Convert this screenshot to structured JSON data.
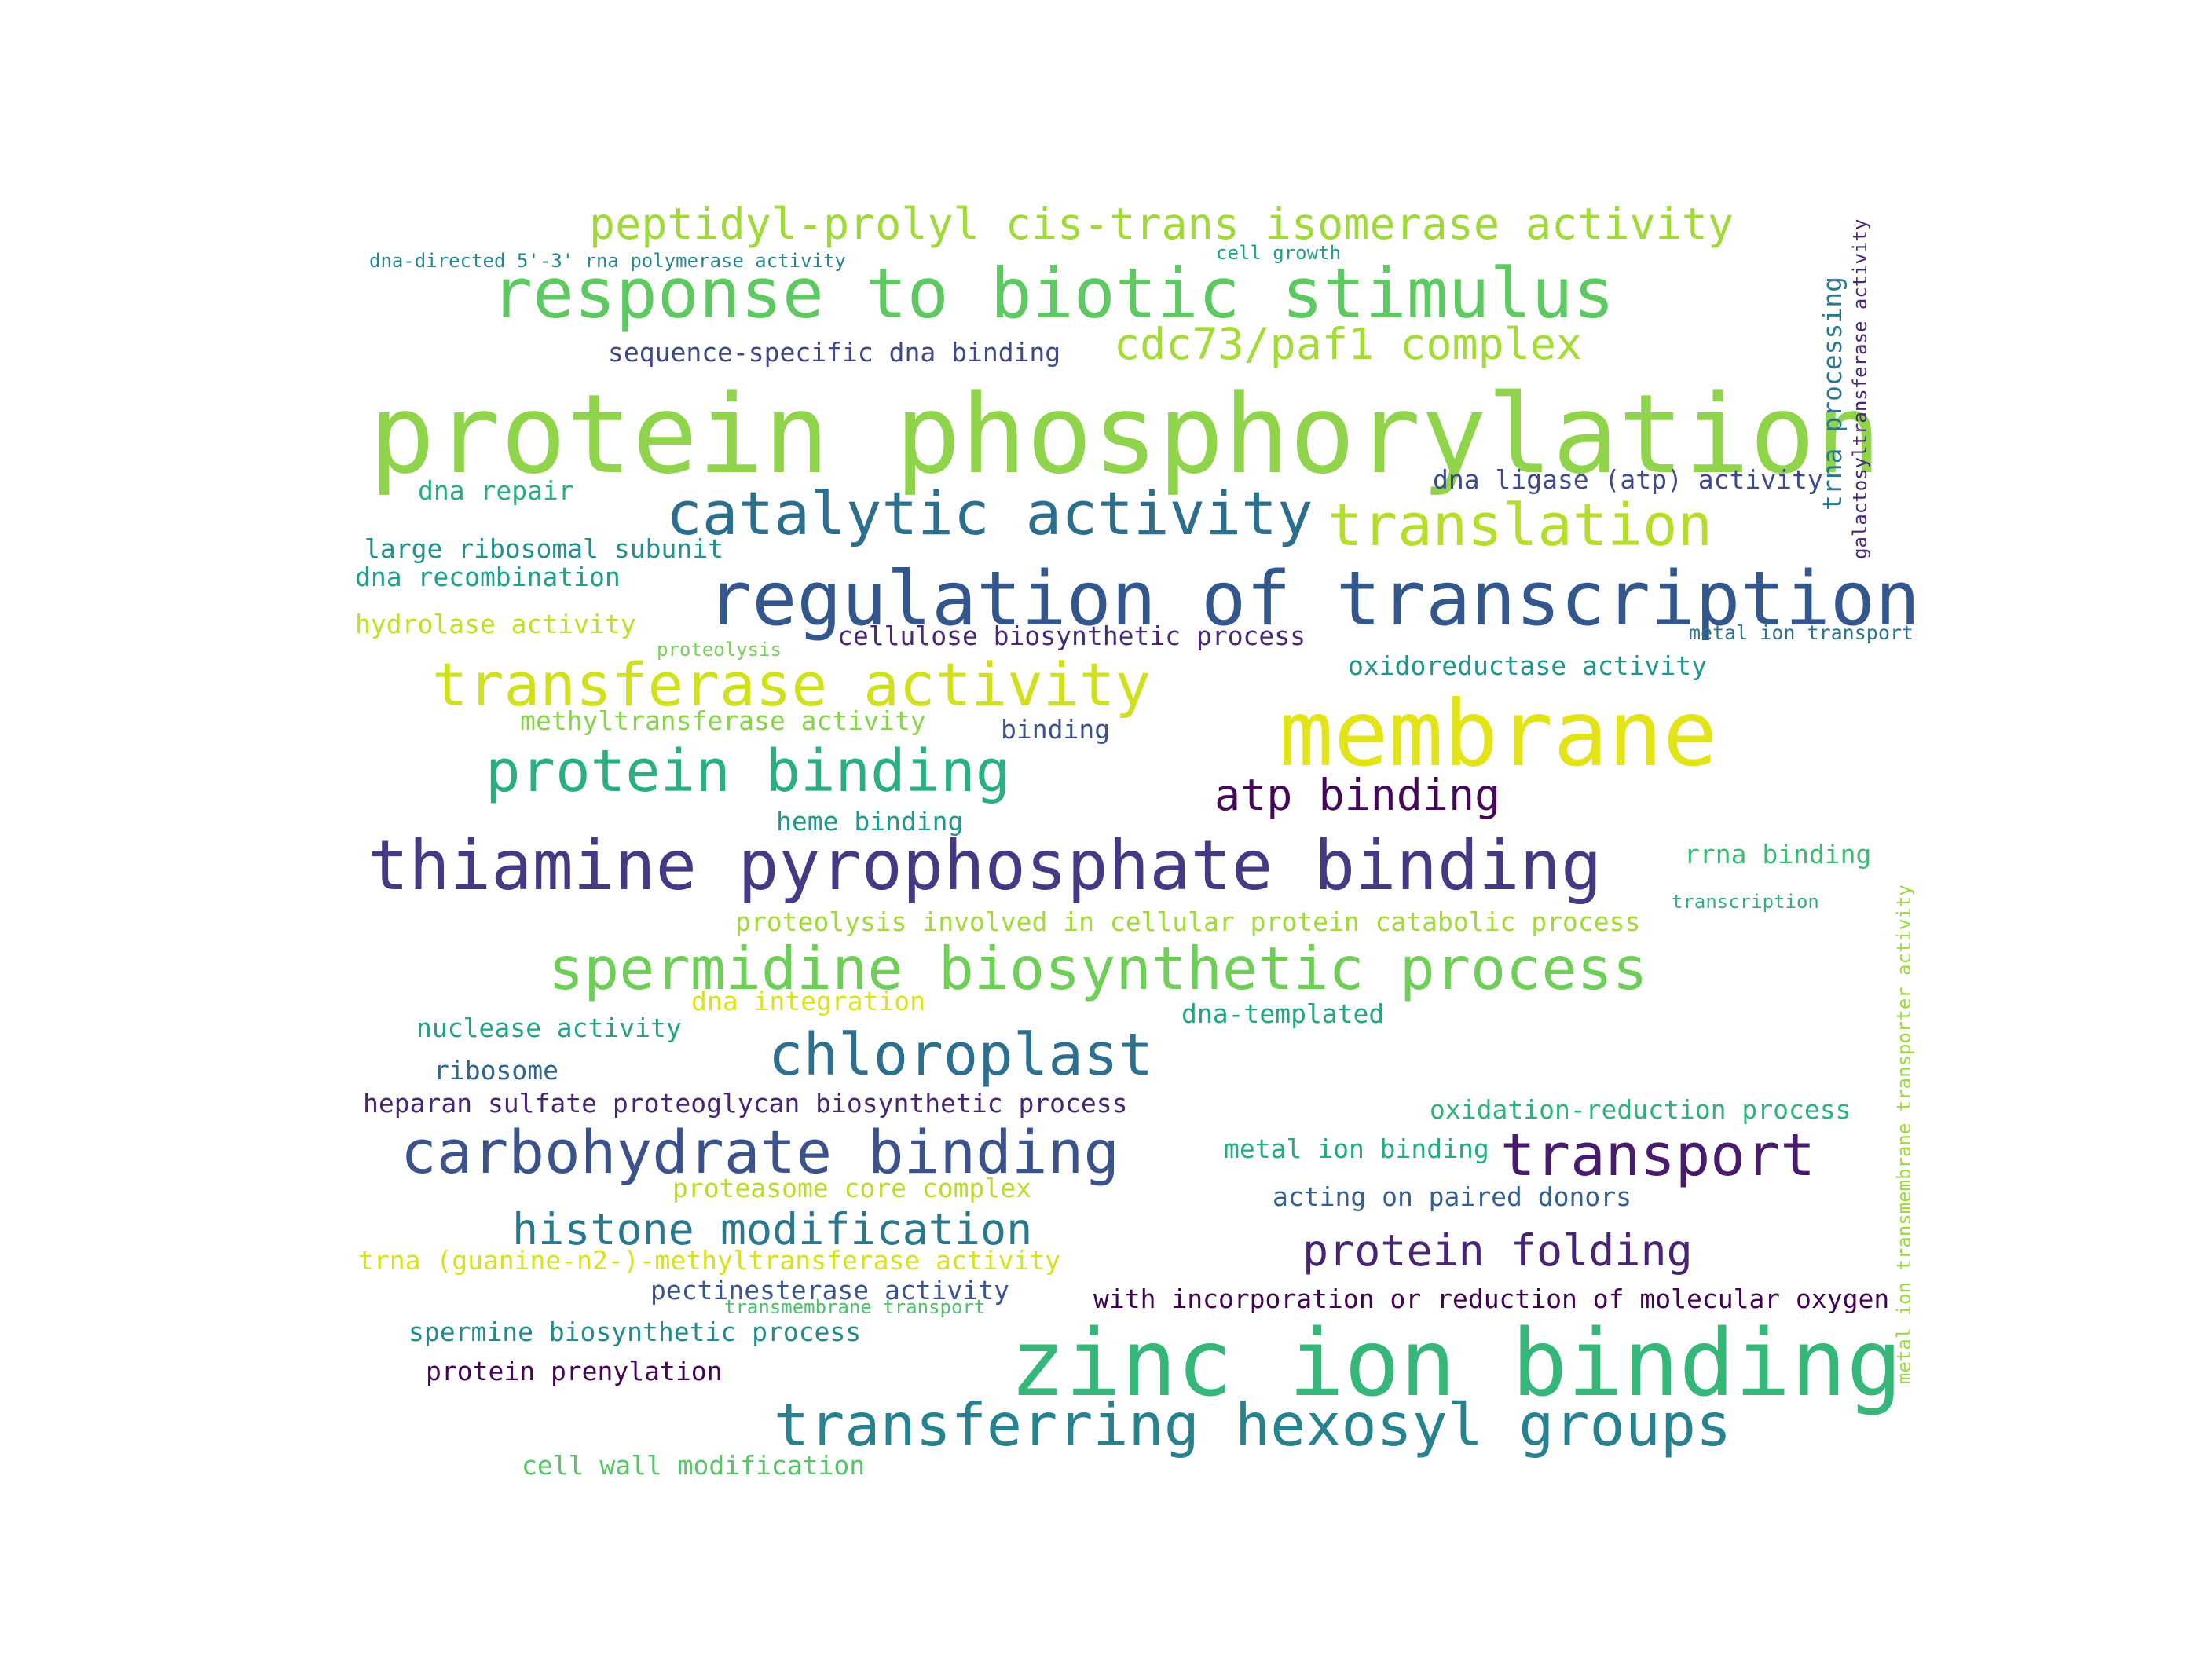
{
  "words": [
    {
      "text": "protein phosphorylation",
      "color": "#8fd44a",
      "emphasis": "largest"
    },
    {
      "text": "zinc ion binding",
      "color": "#35b779",
      "emphasis": "very large"
    },
    {
      "text": "membrane",
      "color": "#e2e418",
      "emphasis": "very large"
    },
    {
      "text": "regulation of transcription",
      "color": "#33578c",
      "emphasis": "large"
    },
    {
      "text": "thiamine pyrophosphate binding",
      "color": "#433a83",
      "emphasis": "large"
    },
    {
      "text": "response to biotic stimulus",
      "color": "#5ec962",
      "emphasis": "large"
    },
    {
      "text": "catalytic activity",
      "color": "#2c6e8e",
      "emphasis": "large"
    },
    {
      "text": "transferring hexosyl groups",
      "color": "#26828e",
      "emphasis": "large"
    },
    {
      "text": "spermidine biosynthetic process",
      "color": "#6ece58",
      "emphasis": "large"
    },
    {
      "text": "transferase activity",
      "color": "#d0e11c",
      "emphasis": "large"
    },
    {
      "text": "carbohydrate binding",
      "color": "#3b528b",
      "emphasis": "large"
    },
    {
      "text": "chloroplast",
      "color": "#2d6f8e",
      "emphasis": "large"
    },
    {
      "text": "protein binding",
      "color": "#2ab07f",
      "emphasis": "large"
    },
    {
      "text": "translation",
      "color": "#b5de2b",
      "emphasis": "medium"
    },
    {
      "text": "transport",
      "color": "#481b6d",
      "emphasis": "medium"
    },
    {
      "text": "peptidyl-prolyl cis-trans isomerase activity",
      "color": "#a0da39",
      "emphasis": "medium"
    },
    {
      "text": "cdc73/paf1 complex",
      "color": "#a5db36",
      "emphasis": "medium"
    },
    {
      "text": "histone modification",
      "color": "#29788e",
      "emphasis": "medium"
    },
    {
      "text": "atp binding",
      "color": "#46075a",
      "emphasis": "medium"
    },
    {
      "text": "protein folding",
      "color": "#482475",
      "emphasis": "medium"
    },
    {
      "text": "dna-directed 5'-3' rna polymerase activity",
      "color": "#25858e",
      "emphasis": "small"
    },
    {
      "text": "cell growth",
      "color": "#1f9e89",
      "emphasis": "small"
    },
    {
      "text": "sequence-specific dna binding",
      "color": "#3e4989",
      "emphasis": "small"
    },
    {
      "text": "dna ligase (atp) activity",
      "color": "#3e4a89",
      "emphasis": "small"
    },
    {
      "text": "dna repair",
      "color": "#28ae80",
      "emphasis": "small"
    },
    {
      "text": "large ribosomal subunit",
      "color": "#21918c",
      "emphasis": "small"
    },
    {
      "text": "dna recombination",
      "color": "#1fa088",
      "emphasis": "small"
    },
    {
      "text": "hydrolase activity",
      "color": "#c2df23",
      "emphasis": "small"
    },
    {
      "text": "cellulose biosynthetic process",
      "color": "#482878",
      "emphasis": "small"
    },
    {
      "text": "metal ion transport",
      "color": "#2c728e",
      "emphasis": "small"
    },
    {
      "text": "proteolysis",
      "color": "#7ad151",
      "emphasis": "small"
    },
    {
      "text": "oxidoreductase activity",
      "color": "#1f968b",
      "emphasis": "small"
    },
    {
      "text": "methyltransferase activity",
      "color": "#86d549",
      "emphasis": "small"
    },
    {
      "text": "binding",
      "color": "#3b528b",
      "emphasis": "small"
    },
    {
      "text": "heme binding",
      "color": "#1f9a8a",
      "emphasis": "small"
    },
    {
      "text": "rrna binding",
      "color": "#3bbb75",
      "emphasis": "small"
    },
    {
      "text": "transcription",
      "color": "#2db27d",
      "emphasis": "small"
    },
    {
      "text": "proteolysis involved in cellular protein catabolic process",
      "color": "#a2da37",
      "emphasis": "small"
    },
    {
      "text": "nuclease activity",
      "color": "#20a486",
      "emphasis": "small"
    },
    {
      "text": "dna integration",
      "color": "#dde318",
      "emphasis": "small"
    },
    {
      "text": "dna-templated",
      "color": "#22a785",
      "emphasis": "small"
    },
    {
      "text": "ribosome",
      "color": "#31668e",
      "emphasis": "small"
    },
    {
      "text": "heparan sulfate proteoglycan biosynthetic process",
      "color": "#482475",
      "emphasis": "small"
    },
    {
      "text": "oxidation-reduction process",
      "color": "#2eb37c",
      "emphasis": "small"
    },
    {
      "text": "metal ion binding",
      "color": "#25ab82",
      "emphasis": "small"
    },
    {
      "text": "proteasome core complex",
      "color": "#b8de29",
      "emphasis": "small"
    },
    {
      "text": "acting on paired donors",
      "color": "#355f8d",
      "emphasis": "small"
    },
    {
      "text": "trna (guanine-n2-)-methyltransferase activity",
      "color": "#d8e219",
      "emphasis": "small"
    },
    {
      "text": "pectinesterase activity",
      "color": "#3a548c",
      "emphasis": "small"
    },
    {
      "text": "transmembrane transport",
      "color": "#4ac16d",
      "emphasis": "small"
    },
    {
      "text": "with incorporation or reduction of molecular oxygen",
      "color": "#440154",
      "emphasis": "small"
    },
    {
      "text": "spermine biosynthetic process",
      "color": "#238a8d",
      "emphasis": "small"
    },
    {
      "text": "protein prenylation",
      "color": "#450457",
      "emphasis": "small"
    },
    {
      "text": "cell wall modification",
      "color": "#56c667",
      "emphasis": "small"
    },
    {
      "text": "trna processing",
      "color": "#2a788e",
      "emphasis": "vertical"
    },
    {
      "text": "galactosyltransferase activity",
      "color": "#482576",
      "emphasis": "vertical"
    },
    {
      "text": "metal ion transmembrane transporter activity",
      "color": "#9bd93c",
      "emphasis": "vertical"
    }
  ]
}
